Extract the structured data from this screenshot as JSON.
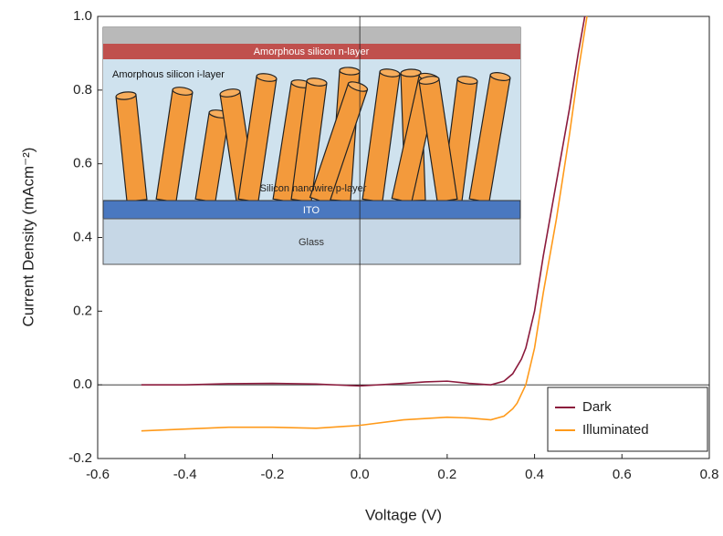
{
  "chart_data": {
    "type": "line",
    "xlabel": "Voltage (V)",
    "ylabel": "Current Density (mAcm⁻²)",
    "xlim": [
      -0.6,
      0.8
    ],
    "ylim": [
      -0.2,
      1.0
    ],
    "xticks": [
      -0.6,
      -0.4,
      -0.2,
      {
        "value": 0,
        "label": "0.0"
      },
      0.2,
      0.4,
      0.6,
      0.8
    ],
    "yticks": [
      -0.2,
      {
        "value": 0,
        "label": "0.0"
      },
      0.2,
      0.4,
      0.6,
      0.8,
      {
        "value": 1,
        "label": "1.0"
      }
    ],
    "legend": "lower right",
    "series": [
      {
        "name": "Dark",
        "color": "#8b1a3c",
        "x": [
          -0.5,
          -0.4,
          -0.3,
          -0.2,
          -0.1,
          0,
          0.1,
          0.15,
          0.2,
          0.25,
          0.3,
          0.33,
          0.35,
          0.37,
          0.38,
          0.4,
          0.42,
          0.45,
          0.48,
          0.5,
          0.515
        ],
        "values": [
          0,
          0,
          0.003,
          0.004,
          0.002,
          -0.003,
          0.004,
          0.008,
          0.01,
          0.004,
          0,
          0.01,
          0.03,
          0.07,
          0.1,
          0.2,
          0.35,
          0.55,
          0.75,
          0.9,
          1.0
        ]
      },
      {
        "name": "Illuminated",
        "color": "#ff9a1a",
        "x": [
          -0.5,
          -0.4,
          -0.3,
          -0.2,
          -0.1,
          0,
          0.1,
          0.2,
          0.25,
          0.3,
          0.33,
          0.35,
          0.36,
          0.38,
          0.4,
          0.42,
          0.45,
          0.48,
          0.5,
          0.52
        ],
        "values": [
          -0.125,
          -0.12,
          -0.115,
          -0.115,
          -0.118,
          -0.11,
          -0.095,
          -0.088,
          -0.09,
          -0.095,
          -0.085,
          -0.065,
          -0.05,
          0,
          0.1,
          0.25,
          0.45,
          0.68,
          0.85,
          1.0
        ]
      }
    ]
  },
  "inset": {
    "n_layer": "Amorphous silicon n-layer",
    "i_layer": "Amorphous silicon i-layer",
    "p_layer": "Silicon nanowire p-layer",
    "ito": "ITO",
    "glass": "Glass"
  }
}
